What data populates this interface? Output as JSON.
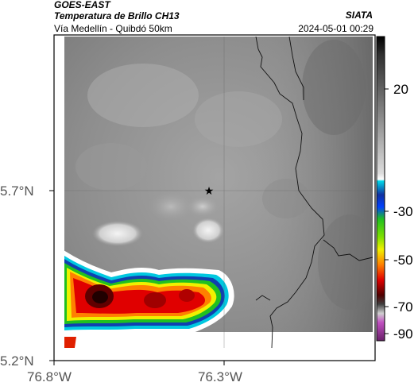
{
  "header": {
    "satellite": "GOES-EAST",
    "product": "Temperatura de Brillo CH13",
    "region": "Vía Medellín - Quibdó 50km",
    "org": "SIATA",
    "datetime": "2024-05-01 00:29"
  },
  "map": {
    "lon_ticks": [
      "76.8°W",
      "76.3°W"
    ],
    "lat_ticks": [
      "5.7°N",
      "5.2°N"
    ],
    "marker": "star-marker"
  },
  "colorbar": {
    "labels": [
      "20",
      "-30",
      "-50",
      "-70",
      "-90"
    ],
    "colors": {
      "warm_top": "#000000",
      "gray_mid": "#c8c8c8",
      "white": "#ffffff",
      "cyan": "#00d0e0",
      "blue": "#1030a0",
      "green": "#20c020",
      "yellow": "#f0f000",
      "orange": "#ff8000",
      "red": "#e00000",
      "dark_red": "#500000",
      "purple": "#b040b0"
    }
  }
}
